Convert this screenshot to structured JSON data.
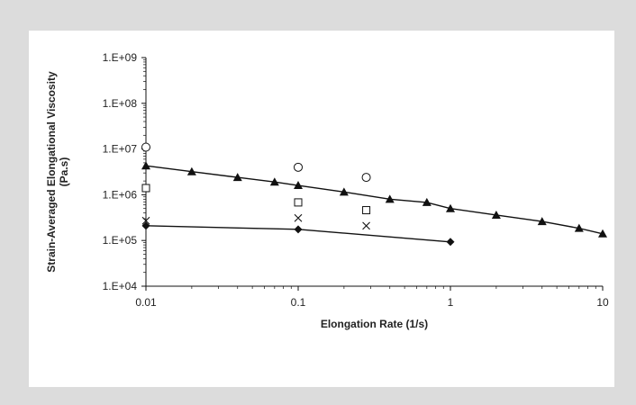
{
  "chart_data": {
    "type": "scatter",
    "title": "",
    "xlabel": "Elongation Rate (1/s)",
    "ylabel_lines": [
      "Strain-Averaged Elongational Viscosity",
      "(Pa.s)"
    ],
    "x_scale": "log",
    "y_scale": "log",
    "xlim": [
      0.01,
      10
    ],
    "ylim": [
      10000,
      1000000000
    ],
    "x_ticks": [
      {
        "value": 0.01,
        "label": "0.01"
      },
      {
        "value": 0.1,
        "label": "0.1"
      },
      {
        "value": 1,
        "label": "1"
      },
      {
        "value": 10,
        "label": "10"
      }
    ],
    "y_ticks": [
      {
        "value": 1000000000,
        "label": "1.E+09"
      },
      {
        "value": 100000000,
        "label": "1.E+08"
      },
      {
        "value": 10000000,
        "label": "1.E+07"
      },
      {
        "value": 1000000,
        "label": "1.E+06"
      },
      {
        "value": 100000,
        "label": "1.E+05"
      },
      {
        "value": 10000,
        "label": "1.E+04"
      }
    ],
    "grid": false,
    "legend": "none",
    "series": [
      {
        "marker": "triangle-filled",
        "line": true,
        "color": "#111111",
        "points": [
          [
            0.01,
            4300000
          ],
          [
            0.02,
            3200000
          ],
          [
            0.04,
            2400000
          ],
          [
            0.07,
            1900000
          ],
          [
            0.1,
            1600000
          ],
          [
            0.2,
            1150000
          ],
          [
            0.4,
            800000
          ],
          [
            0.7,
            680000
          ],
          [
            1,
            500000
          ],
          [
            2,
            360000
          ],
          [
            4,
            260000
          ],
          [
            7,
            185000
          ],
          [
            10,
            140000
          ]
        ]
      },
      {
        "marker": "diamond-filled",
        "line": true,
        "color": "#111111",
        "points": [
          [
            0.01,
            210000
          ],
          [
            0.1,
            175000
          ],
          [
            1,
            93000
          ]
        ]
      },
      {
        "marker": "circle-open",
        "line": false,
        "color": "#111111",
        "points": [
          [
            0.01,
            11000000
          ],
          [
            0.1,
            4000000
          ],
          [
            0.28,
            2400000
          ]
        ]
      },
      {
        "marker": "square-open",
        "line": false,
        "color": "#111111",
        "points": [
          [
            0.01,
            1400000
          ],
          [
            0.1,
            680000
          ],
          [
            0.28,
            460000
          ]
        ]
      },
      {
        "marker": "x",
        "line": false,
        "color": "#111111",
        "points": [
          [
            0.01,
            270000
          ],
          [
            0.1,
            310000
          ],
          [
            0.28,
            210000
          ]
        ]
      }
    ]
  }
}
